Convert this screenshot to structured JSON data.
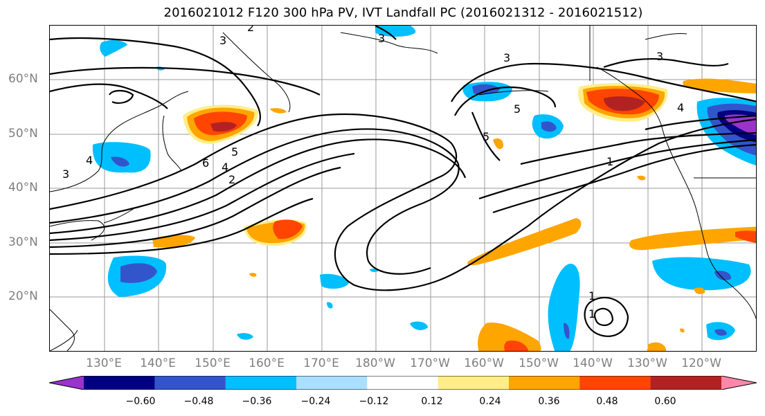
{
  "title": "2016021012 F120 300 hPa PV, IVT Landfall PC (2016021312 - 2016021512)",
  "lat_labels": [
    "60°N",
    "50°N",
    "40°N",
    "30°N",
    "20°N"
  ],
  "lon_labels": [
    "130°E",
    "140°E",
    "150°E",
    "160°E",
    "170°E",
    "180°W",
    "170°W",
    "160°W",
    "150°W",
    "140°W",
    "130°W",
    "120°W"
  ],
  "contour_labels": [
    "2",
    "3",
    "3",
    "3",
    "3",
    "5",
    "5",
    "4",
    "1",
    "3",
    "4",
    "5",
    "6",
    "4",
    "2",
    "1",
    "1"
  ],
  "colorbar": {
    "colors": [
      "#9933cc",
      "#000080",
      "#3355cc",
      "#00bfff",
      "#aadfff",
      "#ffffff",
      "#ffee88",
      "#ffa500",
      "#ff4500",
      "#b22222",
      "#ff88aa"
    ],
    "ticks": [
      "−0.60",
      "−0.48",
      "−0.36",
      "−0.24",
      "−0.12",
      "0.12",
      "0.24",
      "0.36",
      "0.48",
      "0.60"
    ]
  }
}
